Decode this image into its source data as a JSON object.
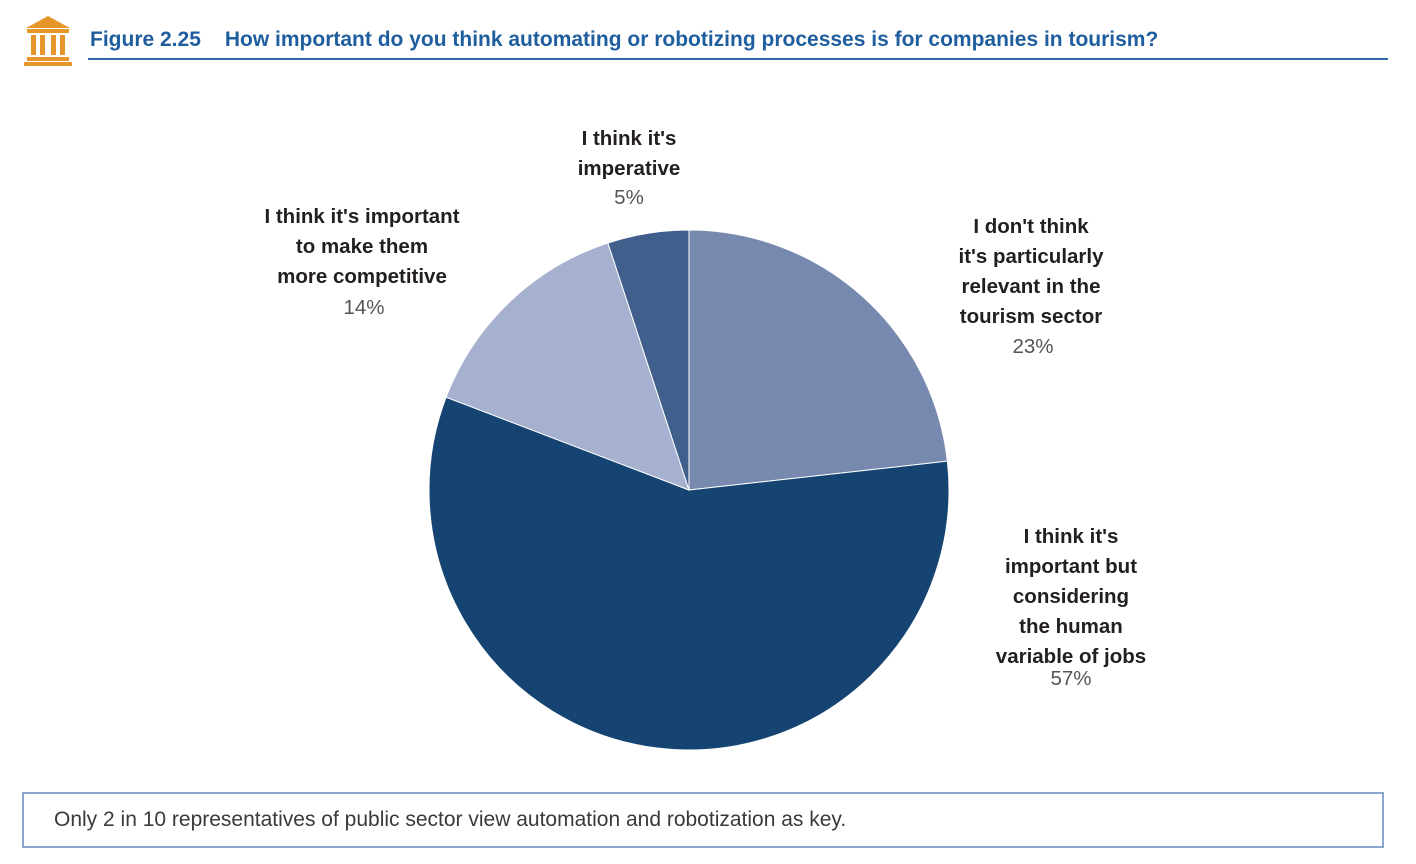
{
  "header": {
    "figure_number": "Figure 2.25",
    "title": "How important do you think automating or robotizing processes is for companies in tourism?",
    "icon": "institution-building-icon"
  },
  "chart_data": {
    "type": "pie",
    "title": "How important do you think automating or robotizing processes is for companies in tourism?",
    "slices": [
      {
        "label": "I think it's imperative",
        "label_lines": "I think it's\nimperative",
        "value": 5,
        "value_label": "5%",
        "color": "#415f8c"
      },
      {
        "label": "I don't think it's particularly relevant in the tourism sector",
        "label_lines": "I don't think\nit's particularly\nrelevant in the\ntourism sector",
        "value": 23,
        "value_label": "23%",
        "color": "#7889b0"
      },
      {
        "label": "I think it's important but considering the human variable of jobs",
        "label_lines": "I think it's\nimportant but\nconsidering\nthe human\nvariable of jobs",
        "value": 57,
        "value_label": "57%",
        "color": "#154472"
      },
      {
        "label": "I think it's important to make them more competitive",
        "label_lines": "I think it's important\nto make them\nmore competitive",
        "value": 14,
        "value_label": "14%",
        "color": "#a5b1ce"
      }
    ]
  },
  "note": {
    "text": "Only 2 in 10 representatives of public sector view automation and robotization as key."
  }
}
